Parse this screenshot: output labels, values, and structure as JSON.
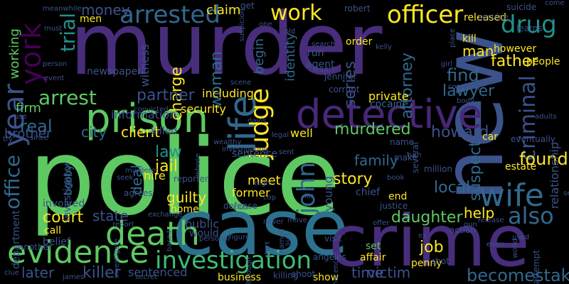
{
  "word_cloud": {
    "words": [
      {
        "text": "police",
        "color": "#5ec962",
        "rotate": false
      },
      {
        "text": "murder",
        "color": "#472d7b",
        "rotate": false
      },
      {
        "text": "case",
        "color": "#2c728e",
        "rotate": false
      },
      {
        "text": "crime",
        "color": "#472d7b",
        "rotate": false
      },
      {
        "text": "new",
        "color": "#3b528b",
        "rotate": true
      },
      {
        "text": "detective",
        "color": "#482878",
        "rotate": false
      },
      {
        "text": "prison",
        "color": "#5ec962",
        "rotate": false
      },
      {
        "text": "evidence",
        "color": "#5ec962",
        "rotate": false
      },
      {
        "text": "life",
        "color": "#31688e",
        "rotate": true
      },
      {
        "text": "death",
        "color": "#5ec962",
        "rotate": false
      },
      {
        "text": "investigation",
        "color": "#3fbc73",
        "rotate": false
      },
      {
        "text": "wife",
        "color": "#31688e",
        "rotate": false
      },
      {
        "text": "arrested",
        "color": "#31688e",
        "rotate": false
      },
      {
        "text": "york",
        "color": "#440154",
        "rotate": true
      },
      {
        "text": "year",
        "color": "#3b528b",
        "rotate": true
      },
      {
        "text": "officer",
        "color": "#fde725",
        "rotate": false
      },
      {
        "text": "drug",
        "color": "#21918c",
        "rotate": false
      },
      {
        "text": "work",
        "color": "#fde725",
        "rotate": false
      },
      {
        "text": "judge",
        "color": "#fde725",
        "rotate": true
      },
      {
        "text": "trial",
        "color": "#21918c",
        "rotate": true
      },
      {
        "text": "arrest",
        "color": "#5ec962",
        "rotate": false
      },
      {
        "text": "office",
        "color": "#31688e",
        "rotate": true
      },
      {
        "text": "criminal",
        "color": "#3b528b",
        "rotate": true
      },
      {
        "text": "john",
        "color": "#31688e",
        "rotate": true
      },
      {
        "text": "also",
        "color": "#31688e",
        "rotate": false
      },
      {
        "text": "attorney",
        "color": "#31688e",
        "rotate": true
      },
      {
        "text": "find",
        "color": "#31688e",
        "rotate": false
      },
      {
        "text": "found",
        "color": "#fde725",
        "rotate": false
      },
      {
        "text": "money",
        "color": "#3b528b",
        "rotate": false
      },
      {
        "text": "charge",
        "color": "#fde725",
        "rotate": true
      },
      {
        "text": "man",
        "color": "#fde725",
        "rotate": false
      },
      {
        "text": "father",
        "color": "#fde725",
        "rotate": false
      },
      {
        "text": "woman",
        "color": "#31688e",
        "rotate": true
      },
      {
        "text": "lawyer",
        "color": "#31688e",
        "rotate": false
      },
      {
        "text": "partner",
        "color": "#3b528b",
        "rotate": false
      },
      {
        "text": "series",
        "color": "#3b528b",
        "rotate": true
      },
      {
        "text": "howard",
        "color": "#3b528b",
        "rotate": false
      },
      {
        "text": "murdered",
        "color": "#5ec962",
        "rotate": false
      },
      {
        "text": "client",
        "color": "#fde725",
        "rotate": false
      },
      {
        "text": "city",
        "color": "#31688e",
        "rotate": false
      },
      {
        "text": "firm",
        "color": "#5ec962",
        "rotate": false
      },
      {
        "text": "real",
        "color": "#31688e",
        "rotate": false
      },
      {
        "text": "law",
        "color": "#21918c",
        "rotate": false
      },
      {
        "text": "jail",
        "color": "#fde725",
        "rotate": false
      },
      {
        "text": "deal",
        "color": "#31688e",
        "rotate": true
      },
      {
        "text": "story",
        "color": "#fde725",
        "rotate": false
      },
      {
        "text": "family",
        "color": "#31688e",
        "rotate": false
      },
      {
        "text": "suspect",
        "color": "#31688e",
        "rotate": true
      },
      {
        "text": "local",
        "color": "#31688e",
        "rotate": false
      },
      {
        "text": "court",
        "color": "#fde725",
        "rotate": false
      },
      {
        "text": "state",
        "color": "#3b528b",
        "rotate": false
      },
      {
        "text": "daughter",
        "color": "#5ec962",
        "rotate": false
      },
      {
        "text": "help",
        "color": "#fde725",
        "rotate": false
      },
      {
        "text": "job",
        "color": "#fde725",
        "rotate": false
      },
      {
        "text": "victim",
        "color": "#3b528b",
        "rotate": false
      },
      {
        "text": "time",
        "color": "#3b528b",
        "rotate": false
      },
      {
        "text": "killer",
        "color": "#3b528b",
        "rotate": false
      },
      {
        "text": "later",
        "color": "#3b528b",
        "rotate": false
      },
      {
        "text": "becomestake",
        "color": "#31688e",
        "rotate": false
      },
      {
        "text": "brother",
        "color": "#3b528b",
        "rotate": false
      },
      {
        "text": "working",
        "color": "#5ec962",
        "rotate": true
      },
      {
        "text": "claim",
        "color": "#fde725",
        "rotate": false
      },
      {
        "text": "guilty",
        "color": "#fde725",
        "rotate": false
      },
      {
        "text": "hire",
        "color": "#fde725",
        "rotate": false
      },
      {
        "text": "meet",
        "color": "#fde725",
        "rotate": false
      },
      {
        "text": "former",
        "color": "#fde725",
        "rotate": false
      },
      {
        "text": "private",
        "color": "#fde725",
        "rotate": false
      },
      {
        "text": "including",
        "color": "#fde725",
        "rotate": false
      },
      {
        "text": "security",
        "color": "#fde725",
        "rotate": false
      },
      {
        "text": "business",
        "color": "#fde725",
        "rotate": false
      },
      {
        "text": "sentenced",
        "color": "#3b528b",
        "rotate": false
      },
      {
        "text": "home",
        "color": "#fde725",
        "rotate": false
      },
      {
        "text": "public",
        "color": "#3b528b",
        "rotate": false
      },
      {
        "text": "well",
        "color": "#fde725",
        "rotate": false
      },
      {
        "text": "show",
        "color": "#fde725",
        "rotate": false
      },
      {
        "text": "chief",
        "color": "#3b528b",
        "rotate": false
      },
      {
        "text": "end",
        "color": "#fde725",
        "rotate": false
      },
      {
        "text": "penny",
        "color": "#fde725",
        "rotate": false
      },
      {
        "text": "set",
        "color": "#5ec962",
        "rotate": false
      },
      {
        "text": "young",
        "color": "#3b528b",
        "rotate": true
      },
      {
        "text": "car",
        "color": "#fde725",
        "rotate": false
      },
      {
        "text": "estate",
        "color": "#fde725",
        "rotate": false
      },
      {
        "text": "people",
        "color": "#fde725",
        "rotate": false
      },
      {
        "text": "however",
        "color": "#fde725",
        "rotate": false
      },
      {
        "text": "kill",
        "color": "#fde725",
        "rotate": false
      },
      {
        "text": "released",
        "color": "#fde725",
        "rotate": false
      },
      {
        "text": "relationship",
        "color": "#3b528b",
        "rotate": true
      },
      {
        "text": "cocaine",
        "color": "#31688e",
        "rotate": false
      },
      {
        "text": "begin",
        "color": "#31688e",
        "rotate": true
      },
      {
        "text": "identity",
        "color": "#31688e",
        "rotate": true
      },
      {
        "text": "agent",
        "color": "#3b528b",
        "rotate": false
      },
      {
        "text": "run",
        "color": "#3b528b",
        "rotate": false
      },
      {
        "text": "robert",
        "color": "#3b528b",
        "rotate": false
      },
      {
        "text": "order",
        "color": "#fde725",
        "rotate": false
      },
      {
        "text": "men",
        "color": "#fde725",
        "rotate": false
      },
      {
        "text": "newspaper",
        "color": "#3b528b",
        "rotate": false
      },
      {
        "text": "witness",
        "color": "#3b528b",
        "rotate": true
      },
      {
        "text": "information",
        "color": "#3b528b",
        "rotate": false
      },
      {
        "text": "investigator",
        "color": "#3b528b",
        "rotate": true
      },
      {
        "text": "bobby",
        "color": "#31688e",
        "rotate": true
      },
      {
        "text": "killed",
        "color": "#3b528b",
        "rotate": false
      },
      {
        "text": "involved",
        "color": "#3b528b",
        "rotate": false
      },
      {
        "text": "call",
        "color": "#fde725",
        "rotate": false
      },
      {
        "text": "belief",
        "color": "#3b528b",
        "rotate": false
      },
      {
        "text": "department",
        "color": "#3b528b",
        "rotate": true
      },
      {
        "text": "would",
        "color": "#3b528b",
        "rotate": false
      },
      {
        "text": "another",
        "color": "#3b528b",
        "rotate": false
      },
      {
        "text": "affair",
        "color": "#fde725",
        "rotate": false
      },
      {
        "text": "visit",
        "color": "#3b528b",
        "rotate": false
      },
      {
        "text": "get",
        "color": "#3b528b",
        "rotate": false
      },
      {
        "text": "shoot",
        "color": "#3b528b",
        "rotate": false
      },
      {
        "text": "service",
        "color": "#3b528b",
        "rotate": false
      },
      {
        "text": "suicide",
        "color": "#3b528b",
        "rotate": false
      },
      {
        "text": "learns",
        "color": "#3b528b",
        "rotate": false
      },
      {
        "text": "eventually",
        "color": "#3b528b",
        "rotate": false
      },
      {
        "text": "several",
        "color": "#3b528b",
        "rotate": true
      },
      {
        "text": "million",
        "color": "#3b528b",
        "rotate": false
      },
      {
        "text": "name",
        "color": "#3b528b",
        "rotate": false
      },
      {
        "text": "make",
        "color": "#3b528b",
        "rotate": false
      },
      {
        "text": "justice",
        "color": "#3b528b",
        "rotate": false
      },
      {
        "text": "defense",
        "color": "#3b528b",
        "rotate": false
      },
      {
        "text": "reporter",
        "color": "#3b528b",
        "rotate": false
      },
      {
        "text": "agrees",
        "color": "#3b528b",
        "rotate": false
      },
      {
        "text": "convicted",
        "color": "#3b528b",
        "rotate": false
      },
      {
        "text": "scene",
        "color": "#3b528b",
        "rotate": false
      },
      {
        "text": "sentence",
        "color": "#3b528b",
        "rotate": false
      },
      {
        "text": "legal",
        "color": "#3b528b",
        "rotate": false
      },
      {
        "text": "angeles",
        "color": "#3b528b",
        "rotate": false
      },
      {
        "text": "corrupt",
        "color": "#3b528b",
        "rotate": false
      },
      {
        "text": "jennifer",
        "color": "#3b528b",
        "rotate": false
      },
      {
        "text": "killing",
        "color": "#3b528b",
        "rotate": false
      },
      {
        "text": "shot",
        "color": "#3b528b",
        "rotate": false
      },
      {
        "text": "attempt",
        "color": "#3b528b",
        "rotate": true
      },
      {
        "text": "action",
        "color": "#3b528b",
        "rotate": false
      },
      {
        "text": "personal",
        "color": "#3b528b",
        "rotate": false
      },
      {
        "text": "exchange",
        "color": "#3b528b",
        "rotate": false
      },
      {
        "text": "use",
        "color": "#3b528b",
        "rotate": false
      },
      {
        "text": "secret",
        "color": "#3b528b",
        "rotate": false
      },
      {
        "text": "james",
        "color": "#3b528b",
        "rotate": false
      },
      {
        "text": "clue",
        "color": "#3b528b",
        "rotate": false
      },
      {
        "text": "report",
        "color": "#3b528b",
        "rotate": false
      },
      {
        "text": "lead",
        "color": "#3b528b",
        "rotate": false
      },
      {
        "text": "ex",
        "color": "#3b528b",
        "rotate": false
      },
      {
        "text": "turn",
        "color": "#3b528b",
        "rotate": false
      },
      {
        "text": "used",
        "color": "#3b528b",
        "rotate": false
      },
      {
        "text": "world",
        "color": "#3b528b",
        "rotate": true
      },
      {
        "text": "adults",
        "color": "#3b528b",
        "rotate": false
      },
      {
        "text": "gun",
        "color": "#3b528b",
        "rotate": false
      },
      {
        "text": "even",
        "color": "#3b528b",
        "rotate": false
      },
      {
        "text": "kelly",
        "color": "#3b528b",
        "rotate": false
      },
      {
        "text": "offer",
        "color": "#3b528b",
        "rotate": false
      },
      {
        "text": "release",
        "color": "#3b528b",
        "rotate": false
      },
      {
        "text": "place",
        "color": "#3b528b",
        "rotate": true
      },
      {
        "text": "search",
        "color": "#3b528b",
        "rotate": false
      },
      {
        "text": "old",
        "color": "#3b528b",
        "rotate": false
      },
      {
        "text": "must",
        "color": "#3b528b",
        "rotate": false
      },
      {
        "text": "person",
        "color": "#3b528b",
        "rotate": false
      },
      {
        "text": "event",
        "color": "#3b528b",
        "rotate": false
      },
      {
        "text": "come",
        "color": "#3b528b",
        "rotate": false
      },
      {
        "text": "self",
        "color": "#3b528b",
        "rotate": false
      },
      {
        "text": "wealthy",
        "color": "#3b528b",
        "rotate": false
      },
      {
        "text": "davis",
        "color": "#3b528b",
        "rotate": false
      },
      {
        "text": "los",
        "color": "#3b528b",
        "rotate": false
      },
      {
        "text": "cop",
        "color": "#3b528b",
        "rotate": false
      },
      {
        "text": "high",
        "color": "#3b528b",
        "rotate": false
      },
      {
        "text": "club",
        "color": "#3b528b",
        "rotate": false
      },
      {
        "text": "move",
        "color": "#3b528b",
        "rotate": false
      },
      {
        "text": "never",
        "color": "#3b528b",
        "rotate": false
      },
      {
        "text": "start",
        "color": "#3b528b",
        "rotate": true
      },
      {
        "text": "innocence",
        "color": "#3b528b",
        "rotate": true
      },
      {
        "text": "based",
        "color": "#3b528b",
        "rotate": true
      },
      {
        "text": "since",
        "color": "#3b528b",
        "rotate": false
      },
      {
        "text": "meanwhile",
        "color": "#3b528b",
        "rotate": false
      },
      {
        "text": "suspicion",
        "color": "#3b528b",
        "rotate": true
      },
      {
        "text": "see",
        "color": "#3b528b",
        "rotate": false
      },
      {
        "text": "murderer",
        "color": "#3b528b",
        "rotate": false
      },
      {
        "text": "seek",
        "color": "#3b528b",
        "rotate": false
      },
      {
        "text": "try",
        "color": "#3b528b",
        "rotate": false
      },
      {
        "text": "book",
        "color": "#3b528b",
        "rotate": false
      },
      {
        "text": "one",
        "color": "#3b528b",
        "rotate": false
      },
      {
        "text": "company",
        "color": "#3b528b",
        "rotate": false
      },
      {
        "text": "although",
        "color": "#3b528b",
        "rotate": true
      },
      {
        "text": "girl",
        "color": "#3b528b",
        "rotate": false
      },
      {
        "text": "body",
        "color": "#3b528b",
        "rotate": false
      },
      {
        "text": "investigate",
        "color": "#3b528b",
        "rotate": true
      },
      {
        "text": "figure",
        "color": "#3b528b",
        "rotate": false
      },
      {
        "text": "investigating",
        "color": "#3b528b",
        "rotate": false
      },
      {
        "text": "whose",
        "color": "#3b528b",
        "rotate": true
      },
      {
        "text": "sent",
        "color": "#3b528b",
        "rotate": false
      },
      {
        "text": "named",
        "color": "#3b528b",
        "rotate": true
      },
      {
        "text": "suit",
        "color": "#3b528b",
        "rotate": true
      }
    ]
  }
}
